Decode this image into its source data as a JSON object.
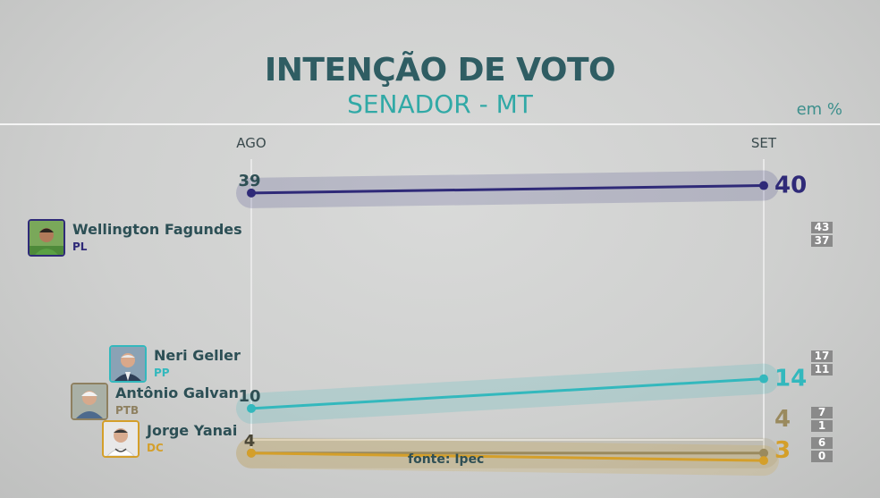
{
  "header": {
    "title": "INTENÇÃO DE VOTO",
    "subtitle": "SENADOR - MT",
    "unit": "em %"
  },
  "source": "fonte: Ipec",
  "chart_data": {
    "type": "line",
    "categories": [
      "AGO",
      "SET"
    ],
    "ylim": [
      0,
      45
    ],
    "grid": false,
    "series": [
      {
        "name": "Wellington Fagundes",
        "party": "PL",
        "color": "#2f2a78",
        "values": [
          39,
          40
        ],
        "range": [
          "43",
          "37"
        ],
        "avatar": "man-green-shirt"
      },
      {
        "name": "Neri Geller",
        "party": "PP",
        "color": "#33b8bd",
        "values": [
          10,
          14
        ],
        "range": [
          "17",
          "11"
        ],
        "avatar": "man-suit"
      },
      {
        "name": "Antônio Galvan",
        "party": "PTB",
        "color": "#9a8a5e",
        "values": [
          4,
          4
        ],
        "range": [
          "7",
          "1"
        ],
        "avatar": "man-white-hair"
      },
      {
        "name": "Jorge Yanai",
        "party": "DC",
        "color": "#d49f2a",
        "values": [
          4,
          3
        ],
        "range": [
          "6",
          "0"
        ],
        "avatar": "doctor"
      }
    ]
  }
}
